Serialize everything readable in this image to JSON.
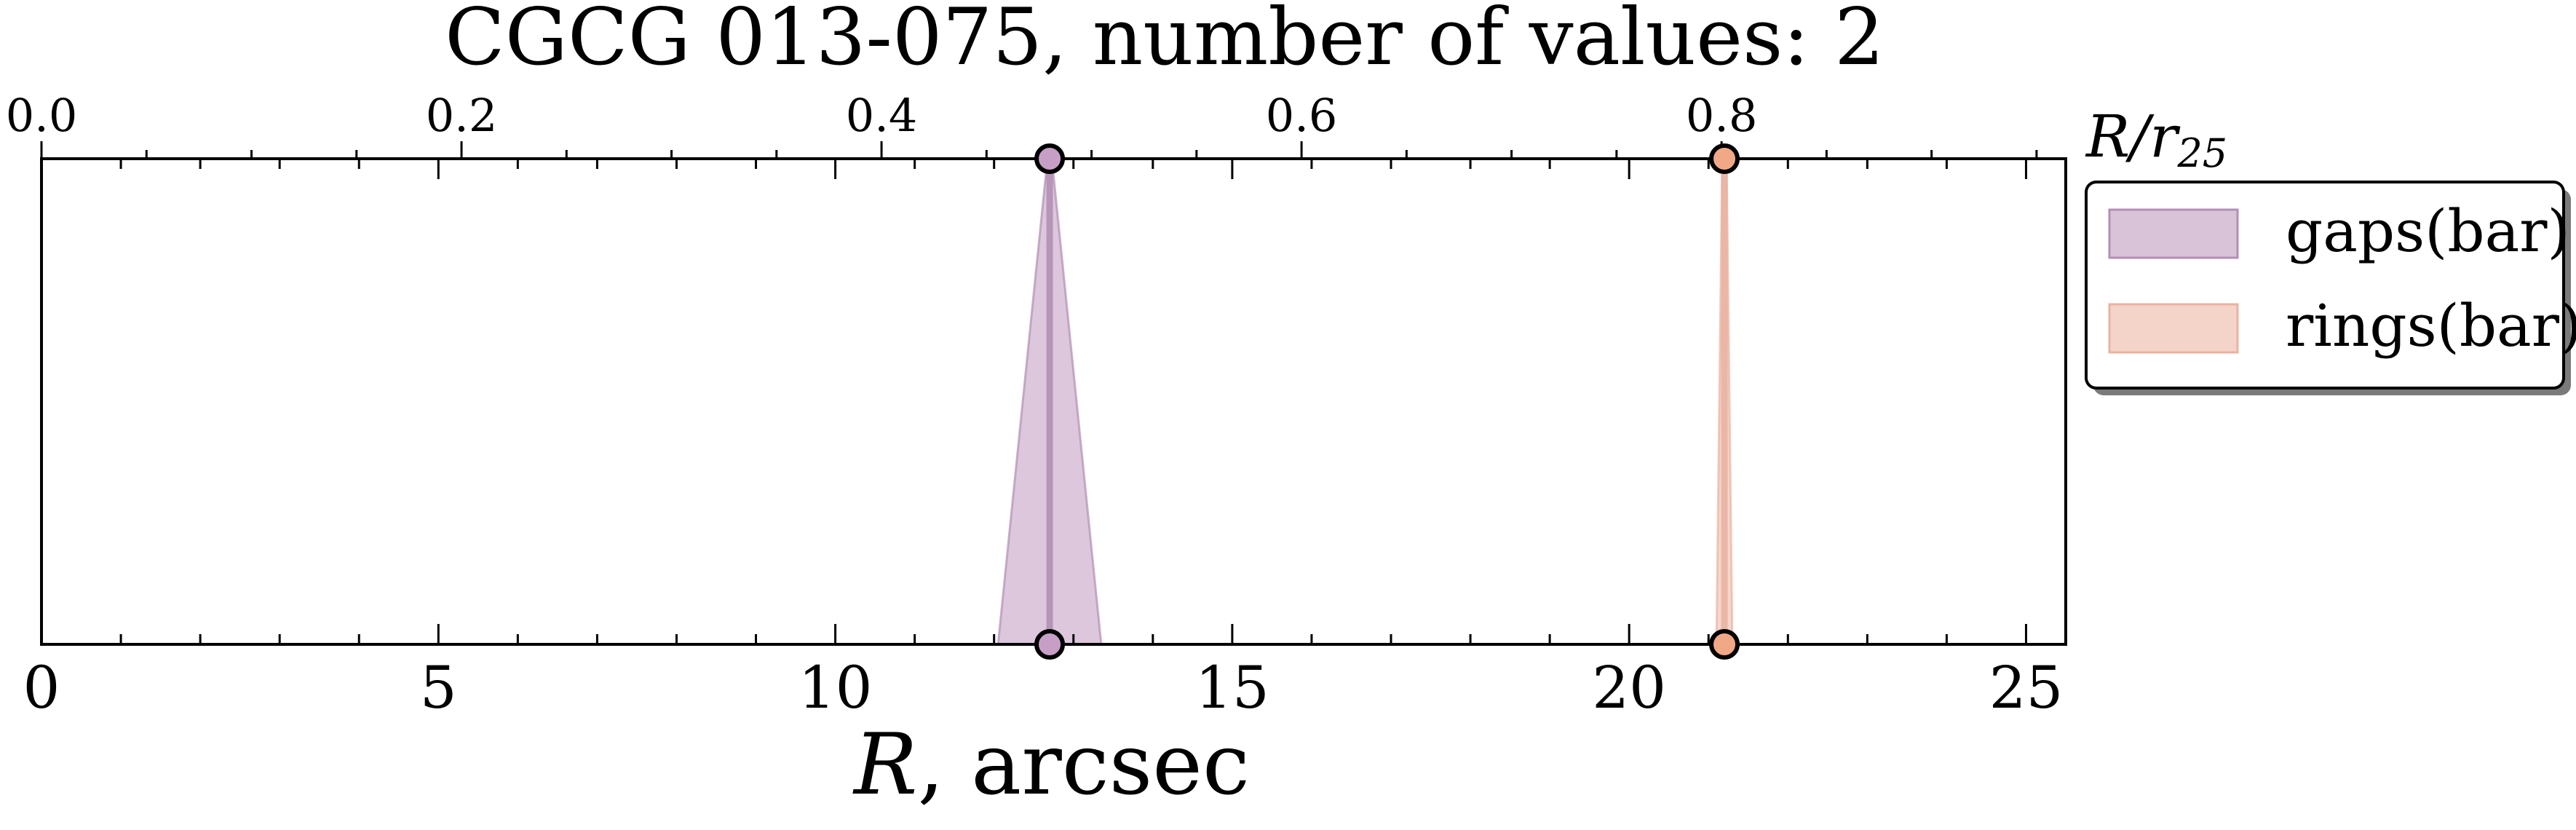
{
  "chart_data": {
    "type": "line",
    "title": "CGCG 013-075, number of values: 2",
    "xlabel_italic": "R",
    "xlabel_rest": ", arcsec",
    "top_axis_label_base": "R/r",
    "top_axis_label_sub": "25",
    "xlim": [
      0,
      25.5
    ],
    "x_ticks": [
      0,
      5,
      10,
      15,
      20,
      25
    ],
    "x_tick_labels": [
      "0",
      "5",
      "10",
      "15",
      "20",
      "25"
    ],
    "top_ticks": [
      0.0,
      0.2,
      0.4,
      0.6,
      0.8
    ],
    "top_tick_labels": [
      "0.0",
      "0.2",
      "0.4",
      "0.6",
      "0.8"
    ],
    "top_per_bottom": 0.0378,
    "grid": false,
    "legend_position": "outside-right-top",
    "series": [
      {
        "name": "gaps(bar)",
        "x": 12.7,
        "spread_bottom": [
          12.05,
          13.35
        ],
        "color": "#c9a9c9",
        "line_color": "#b28fb4",
        "marker_color": "#c79fc6"
      },
      {
        "name": "rings(bar)",
        "x": 21.2,
        "spread_bottom": [
          21.1,
          21.3
        ],
        "color": "#efc1b2",
        "line_color": "#e9b3a2",
        "marker_color": "#f0a887"
      }
    ]
  }
}
